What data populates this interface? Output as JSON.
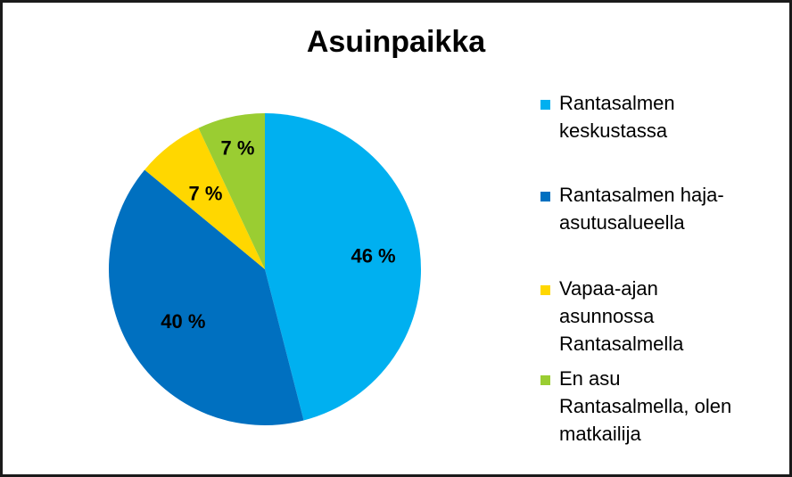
{
  "chart_data": {
    "type": "pie",
    "title": "Asuinpaikka",
    "categories": [
      "Rantasalmen keskustassa",
      "Rantasalmen haja-asutusalueella",
      "Vapaa-ajan asunnossa Rantasalmella",
      "En asu Rantasalmella, olen matkailija"
    ],
    "values": [
      46,
      40,
      7,
      7
    ],
    "data_labels": [
      "46 %",
      "40 %",
      "7 %",
      "7 %"
    ],
    "colors": [
      "#00B0F0",
      "#0070C0",
      "#FFD700",
      "#9ACD32"
    ],
    "legend_position": "right"
  },
  "legend": {
    "items": [
      {
        "text": "Rantasalmen\nkeskustassa",
        "color": "#00B0F0"
      },
      {
        "text": "Rantasalmen haja-\nasutusalueella",
        "color": "#0070C0"
      },
      {
        "text": "Vapaa-ajan\nasunnossa\nRantasalmella",
        "color": "#FFD700"
      },
      {
        "text": "En asu\nRantasalmella, olen\nmatkailija",
        "color": "#9ACD32"
      }
    ]
  }
}
